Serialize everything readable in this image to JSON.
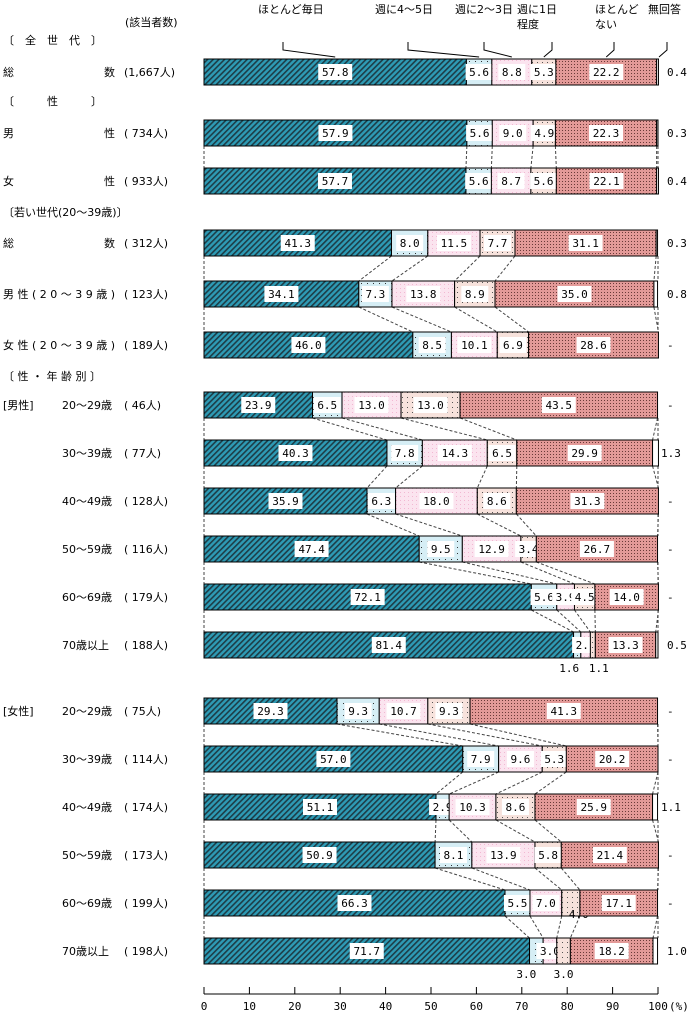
{
  "chart_data": {
    "type": "bar",
    "orientation": "horizontal",
    "stacked": true,
    "count_header": "(該当者数)",
    "categories": [
      "ほとんど毎日",
      "週に4～5日",
      "週に2～3日",
      "週に1日程度",
      "ほとんどない",
      "無回答"
    ],
    "category_lines": [
      [
        "ほとんど毎日"
      ],
      [
        "週に4～5日"
      ],
      [
        "週に2～3日"
      ],
      [
        "週に1日",
        "程度"
      ],
      [
        "ほとんど",
        "ない"
      ],
      [
        "無回答"
      ]
    ],
    "colors": [
      "#2e9bb5",
      "#d6eef5",
      "#fbdcea",
      "#f7dcd6",
      "#e39a98",
      "#ffffff"
    ],
    "xlim": [
      0,
      100
    ],
    "xticks": [
      0,
      10,
      20,
      30,
      40,
      50,
      60,
      70,
      80,
      90,
      100
    ],
    "xunit": "(%)",
    "missing_mark": "-",
    "sections": [
      {
        "title": "〔　全　世　代　〕"
      },
      {
        "title": "〔　　　性　　　〕"
      },
      {
        "title": "〔若い世代(20～39歳)〕"
      },
      {
        "title": "〔 性 ・ 年 齢 別 〕"
      }
    ],
    "group_labels": [
      "[男性]",
      "[女性]"
    ],
    "rows": [
      {
        "label": "総数",
        "n": "(1,667人)",
        "values": [
          57.8,
          5.6,
          8.8,
          5.3,
          22.2,
          0.4
        ]
      },
      {
        "label": "男性",
        "n": "( 734人)",
        "values": [
          57.9,
          5.6,
          9.0,
          4.9,
          22.3,
          0.3
        ]
      },
      {
        "label": "女性",
        "n": "( 933人)",
        "values": [
          57.7,
          5.6,
          8.7,
          5.6,
          22.1,
          0.4
        ]
      },
      {
        "label": "総数",
        "n": "( 312人)",
        "values": [
          41.3,
          8.0,
          11.5,
          7.7,
          31.1,
          0.3
        ]
      },
      {
        "label": "男性(20～39歳)",
        "n": "( 123人)",
        "values": [
          34.1,
          7.3,
          13.8,
          8.9,
          35.0,
          0.8
        ]
      },
      {
        "label": "女性(20～39歳)",
        "n": "( 189人)",
        "values": [
          46.0,
          8.5,
          10.1,
          6.9,
          28.6,
          null
        ]
      },
      {
        "label": "20～29歳",
        "n": "(  46人)",
        "values": [
          23.9,
          6.5,
          13.0,
          13.0,
          43.5,
          null
        ]
      },
      {
        "label": "30～39歳",
        "n": "(  77人)",
        "values": [
          40.3,
          7.8,
          14.3,
          6.5,
          29.9,
          1.3
        ]
      },
      {
        "label": "40～49歳",
        "n": "( 128人)",
        "values": [
          35.9,
          6.3,
          18.0,
          8.6,
          31.3,
          null
        ]
      },
      {
        "label": "50～59歳",
        "n": "( 116人)",
        "values": [
          47.4,
          9.5,
          12.9,
          3.4,
          26.7,
          null
        ]
      },
      {
        "label": "60～69歳",
        "n": "( 179人)",
        "values": [
          72.1,
          5.6,
          3.9,
          4.5,
          14.0,
          null
        ]
      },
      {
        "label": "70歳以上",
        "n": "( 188人)",
        "values": [
          81.4,
          1.6,
          2.1,
          1.1,
          13.3,
          0.5
        ]
      },
      {
        "label": "20～29歳",
        "n": "(  75人)",
        "values": [
          29.3,
          9.3,
          10.7,
          9.3,
          41.3,
          null
        ]
      },
      {
        "label": "30～39歳",
        "n": "( 114人)",
        "values": [
          57.0,
          7.9,
          9.6,
          5.3,
          20.2,
          null
        ]
      },
      {
        "label": "40～49歳",
        "n": "( 174人)",
        "values": [
          51.1,
          2.9,
          10.3,
          8.6,
          25.9,
          1.1
        ]
      },
      {
        "label": "50～59歳",
        "n": "( 173人)",
        "values": [
          50.9,
          8.1,
          13.9,
          5.8,
          21.4,
          null
        ]
      },
      {
        "label": "60～69歳",
        "n": "( 199人)",
        "values": [
          66.3,
          5.5,
          7.0,
          4.0,
          17.1,
          null
        ]
      },
      {
        "label": "70歳以上",
        "n": "( 198人)",
        "values": [
          71.7,
          3.0,
          3.0,
          3.0,
          18.2,
          1.0
        ]
      }
    ]
  }
}
